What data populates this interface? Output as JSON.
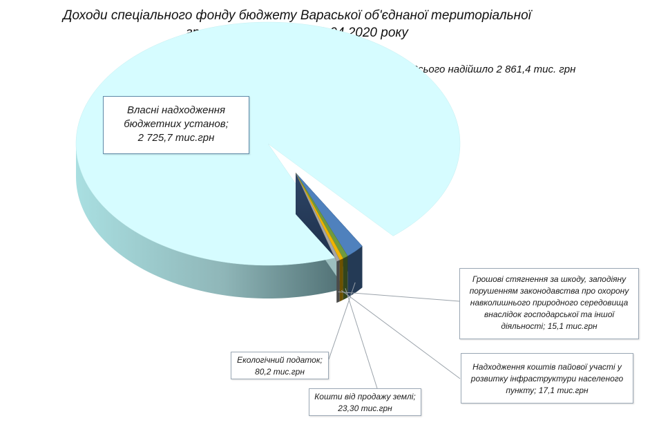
{
  "chart_data": {
    "type": "pie",
    "title_line1": "Доходи спеціального фонду бюджету Вараської об'єднаної територіальної",
    "title_line2": "громади  станом на 01.04.2020 року",
    "total_label": "Всього надійшло  2 861,4 тис. грн",
    "total": 2861.4,
    "unit": "тис.грн",
    "slices": [
      {
        "key": "own",
        "value": 2725.7,
        "color": "#d6fcff",
        "label_lines": [
          "Власні надходження",
          "бюджетних установ;",
          "2 725,7  тис.грн"
        ]
      },
      {
        "key": "eco",
        "value": 80.2,
        "color": "#4f81bd",
        "label_lines": [
          "Екологічний податок;",
          "80,2 тис.грн"
        ]
      },
      {
        "key": "land",
        "value": 23.3,
        "color": "#6f9a3f",
        "label_lines": [
          "Кошти від продажу землі;",
          "23,30 тис.грн"
        ]
      },
      {
        "key": "share",
        "value": 17.1,
        "color": "#f0b400",
        "label_lines": [
          "Надходження коштів пайової участі у",
          "розвитку інфраструктури населеного",
          "пункту; 17,1 тис.грн"
        ]
      },
      {
        "key": "fines",
        "value": 15.1,
        "color": "#a5a5a5",
        "label_lines": [
          "Грошові стягнення за шкоду, заподіяну",
          "порушенням законодавства про охорону",
          "навколишнього природного середовища",
          "внаслідок господарської та іншої",
          "діяльності; 15,1 тис.грн"
        ]
      }
    ]
  }
}
